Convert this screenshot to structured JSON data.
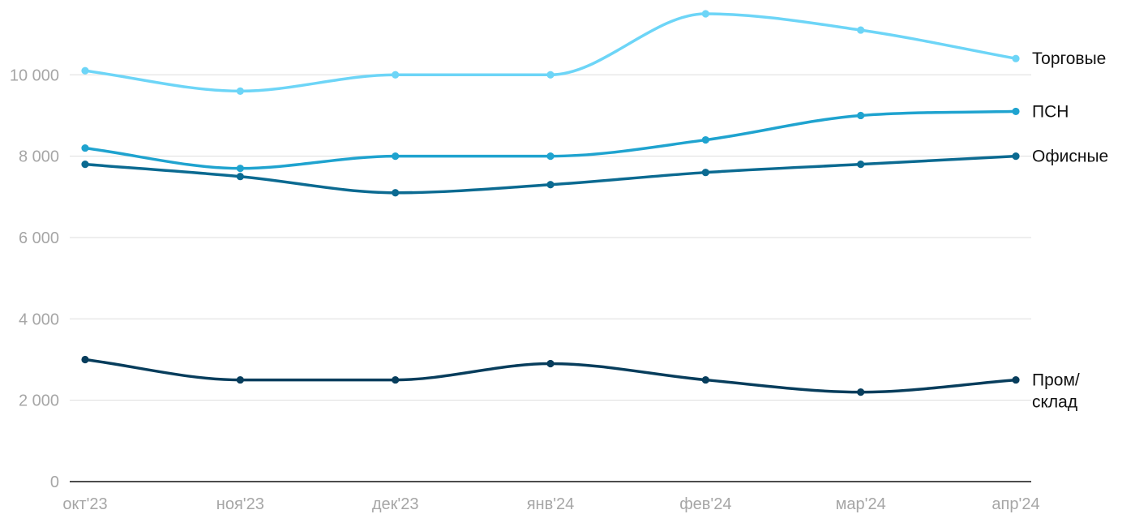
{
  "chart_data": {
    "type": "line",
    "categories": [
      "окт'23",
      "ноя'23",
      "дек'23",
      "янв'24",
      "фев'24",
      "мар'24",
      "апр'24"
    ],
    "ylim": [
      0,
      11600
    ],
    "y_ticks": [
      {
        "value": 0,
        "label": "0"
      },
      {
        "value": 2000,
        "label": "2 000"
      },
      {
        "value": 4000,
        "label": "4 000"
      },
      {
        "value": 6000,
        "label": "6 000"
      },
      {
        "value": 8000,
        "label": "8 000"
      },
      {
        "value": 10000,
        "label": "10 000"
      }
    ],
    "grid": true,
    "legend": "inline labels at right end of each line",
    "series": [
      {
        "name": "Торговые",
        "label_lines": [
          "Торговые"
        ],
        "color": "#6dd5f7",
        "values": [
          10100,
          9600,
          10000,
          10000,
          11500,
          11100,
          10400
        ]
      },
      {
        "name": "ПСН",
        "label_lines": [
          "ПСН"
        ],
        "color": "#1fa3cf",
        "values": [
          8200,
          7700,
          8000,
          8000,
          8400,
          9000,
          9100
        ]
      },
      {
        "name": "Офисные",
        "label_lines": [
          "Офисные"
        ],
        "color": "#0b6a91",
        "values": [
          7800,
          7500,
          7100,
          7300,
          7600,
          7800,
          8000
        ]
      },
      {
        "name": "Пром/ склад",
        "label_lines": [
          "Пром/",
          "склад"
        ],
        "color": "#073d5c",
        "values": [
          3000,
          2500,
          2500,
          2900,
          2500,
          2200,
          2500
        ]
      }
    ]
  }
}
